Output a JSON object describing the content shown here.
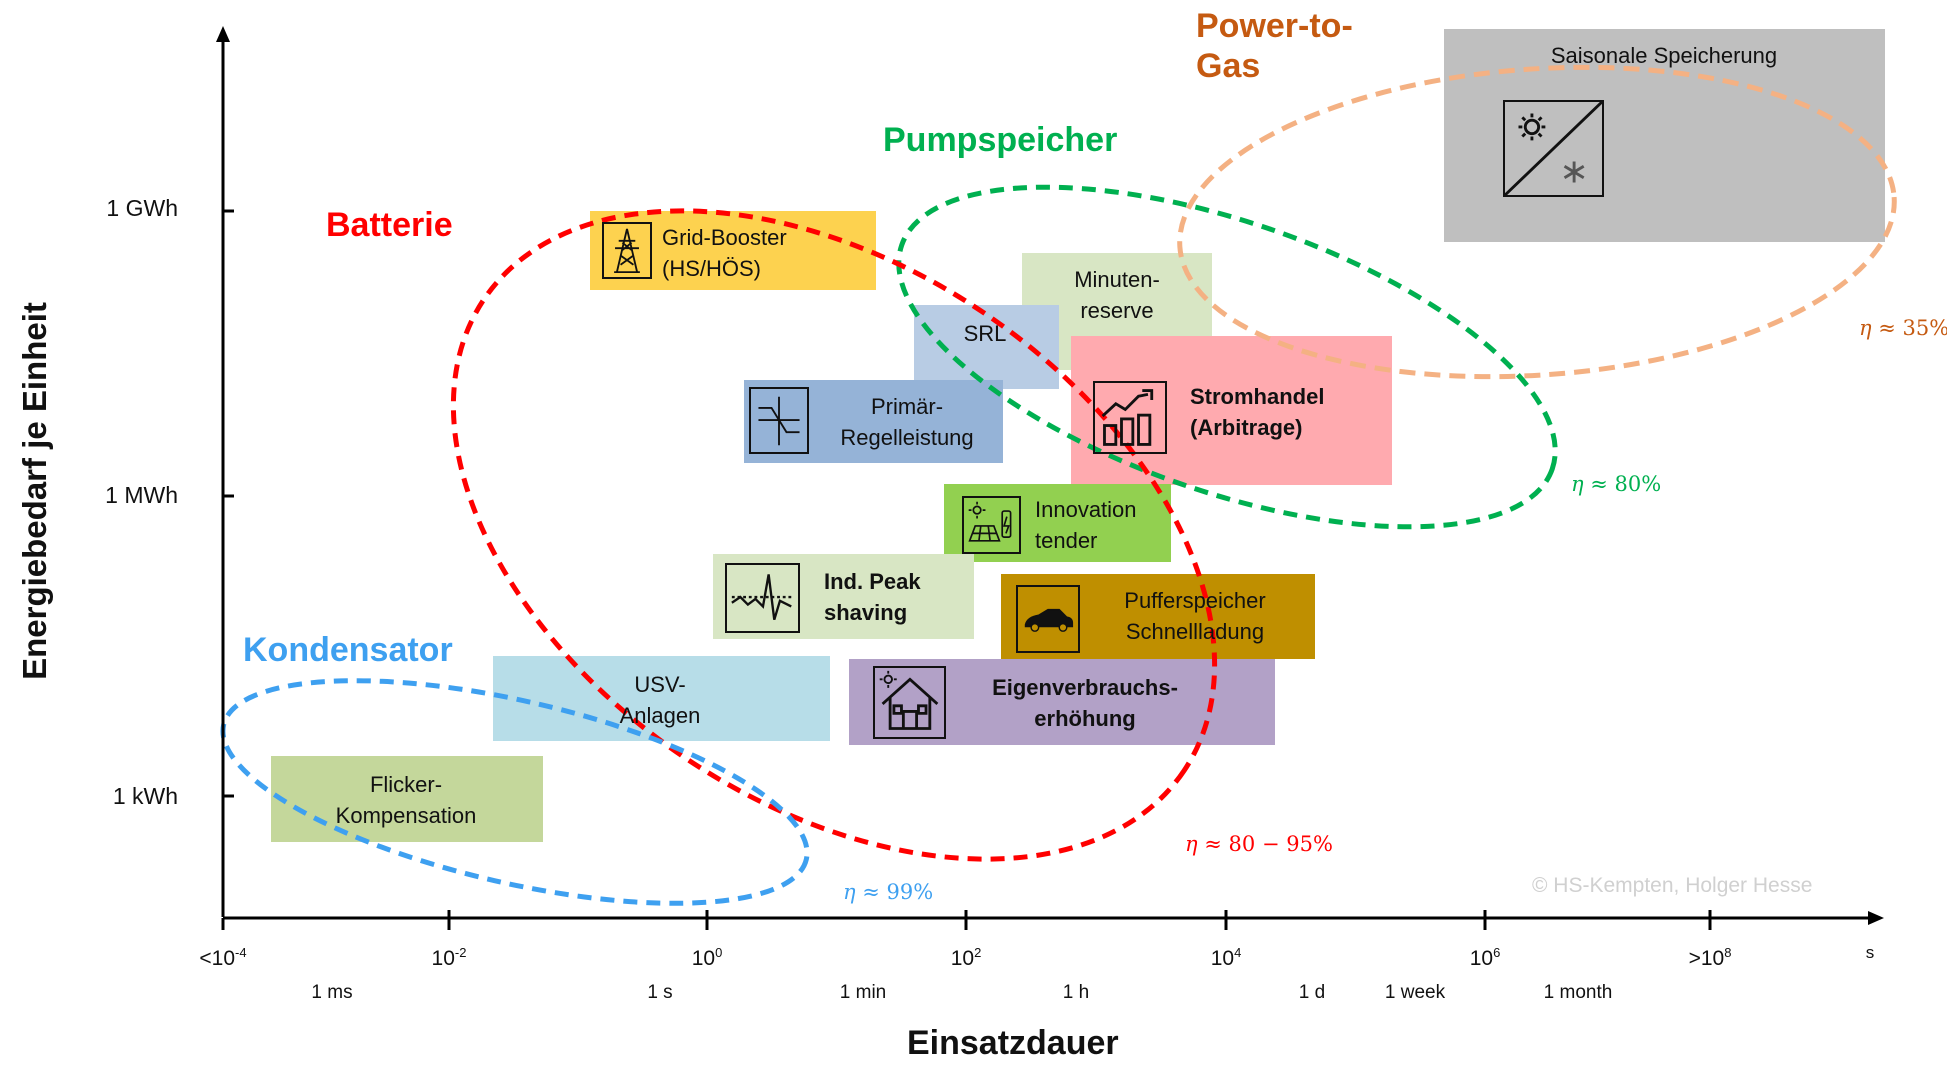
{
  "axes": {
    "y_title": "Energiebedarf  je Einheit",
    "x_title": "Einsatzdauer",
    "y_ticks": [
      "1 GWh",
      "1 MWh",
      "1 kWh"
    ],
    "x_ticks": [
      {
        "base": "<10",
        "exp": "-4"
      },
      {
        "base": "10",
        "exp": "-2"
      },
      {
        "base": "10",
        "exp": "0"
      },
      {
        "base": "10",
        "exp": "2"
      },
      {
        "base": "10",
        "exp": "4"
      },
      {
        "base": "10",
        "exp": "6"
      },
      {
        "base": ">10",
        "exp": "8"
      }
    ],
    "x_unit": "s",
    "durations": [
      "1 ms",
      "1 s",
      "1 min",
      "1 h",
      "1 d",
      "1 week",
      "1 month"
    ]
  },
  "applications": {
    "grid_booster": {
      "label": "Grid-Booster\n(HS/HÖS)",
      "color": "#fdd24f",
      "icon": "pylon-icon"
    },
    "minutenreserve": {
      "label": "Minuten-\nreserve",
      "color": "#d8e6c4"
    },
    "srl": {
      "label": "SRL",
      "color": "#b8cce4"
    },
    "primaer": {
      "label": "Primär-\nRegelleistung",
      "color": "#95b3d7",
      "icon": "frequency-icon"
    },
    "stromhandel": {
      "label": "Stromhandel\n(Arbitrage)",
      "color": "#ffaaaf",
      "icon": "chart-growth-icon"
    },
    "innovation": {
      "label": "Innovation\ntender",
      "color": "#92d050",
      "icon": "solar-battery-icon"
    },
    "peak": {
      "label": "Ind. Peak\nshaving",
      "color": "#d8e6c4",
      "icon": "peak-icon"
    },
    "puffer": {
      "label": "Pufferspeicher\nSchnellladung",
      "color": "#bf8f00",
      "icon": "car-icon"
    },
    "usv": {
      "label": "USV-\nAnlagen",
      "color": "#b7dde8",
      "icon": ""
    },
    "eigen": {
      "label": "Eigenverbrauchs-\nerhöhung",
      "color": "#b2a1c7",
      "icon": "house-icon"
    },
    "flicker": {
      "label": "Flicker-\nKompensation",
      "color": "#c4d79b"
    },
    "saisonal": {
      "label": "Saisonale Speicherung",
      "color": "#bfbfbf",
      "icon": "season-icon"
    }
  },
  "technologies": {
    "power_to_gas": {
      "label": "Power-to-\nGas",
      "color": "#c55a11",
      "ellipse_color": "#f4b183",
      "eta": "≈ 35%"
    },
    "pumpspeicher": {
      "label": "Pumpspeicher",
      "color": "#00b050",
      "ellipse_color": "#00b050",
      "eta": "≈ 80%"
    },
    "batterie": {
      "label": "Batterie",
      "color": "#ff0000",
      "ellipse_color": "#ff0000",
      "eta": "≈ 80 − 95%"
    },
    "kondensator": {
      "label": "Kondensator",
      "color": "#3ea0f0",
      "ellipse_color": "#3ea0f0",
      "eta": "≈ 99%"
    }
  },
  "eta_symbol": "η",
  "copyright": "© HS-Kempten, Holger Hesse"
}
